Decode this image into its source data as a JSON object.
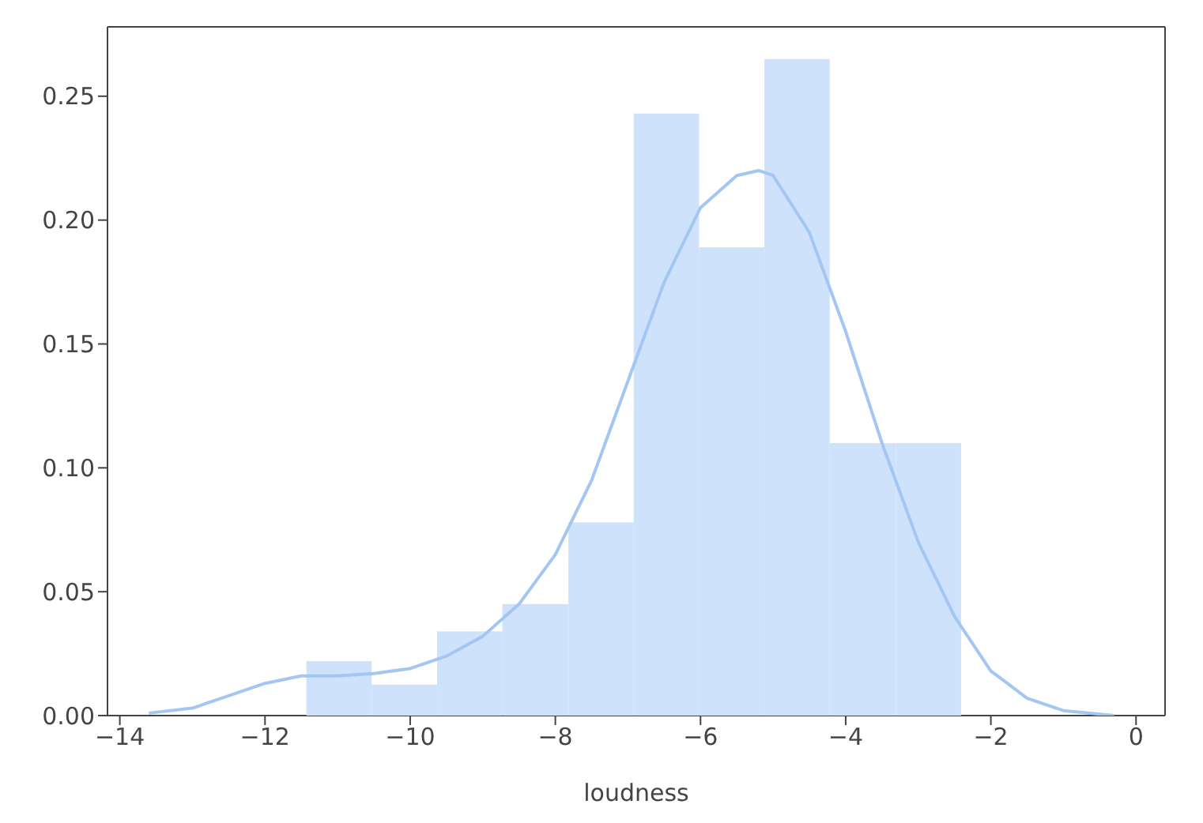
{
  "chart_data": {
    "type": "histogram",
    "xlabel": "loudness",
    "bins": [
      -11.43,
      -10.53,
      -9.63,
      -8.73,
      -7.82,
      -6.92,
      -6.02,
      -5.12,
      -4.22,
      -3.31,
      -2.41
    ],
    "values": [
      0.022,
      0.0125,
      0.034,
      0.045,
      0.078,
      0.243,
      0.189,
      0.265,
      0.11,
      0.11
    ],
    "color": "#cfe2fb",
    "series": [
      {
        "type": "line",
        "color": "#a3c6f2",
        "x": [
          -13.6,
          -13,
          -12.5,
          -12,
          -11.5,
          -11,
          -10.5,
          -10,
          -9.5,
          -9,
          -8.5,
          -8,
          -7.5,
          -7,
          -6.5,
          -6,
          -5.5,
          -5.2,
          -5,
          -4.5,
          -4,
          -3.5,
          -3,
          -2.5,
          -2,
          -1.5,
          -1,
          -0.3
        ],
        "values": [
          0.001,
          0.003,
          0.008,
          0.013,
          0.016,
          0.016,
          0.017,
          0.019,
          0.024,
          0.032,
          0.045,
          0.065,
          0.095,
          0.135,
          0.175,
          0.205,
          0.218,
          0.22,
          0.218,
          0.195,
          0.155,
          0.11,
          0.07,
          0.04,
          0.018,
          0.007,
          0.002,
          0
        ]
      }
    ],
    "xlim": [
      -14.17,
      0.4
    ],
    "ylim": [
      0,
      0.278
    ],
    "xticks": [
      {
        "value": -14,
        "label": "−14"
      },
      {
        "value": -12,
        "label": "−12"
      },
      {
        "value": -10,
        "label": "−10"
      },
      {
        "value": -8,
        "label": "−8"
      },
      {
        "value": -6,
        "label": "−6"
      },
      {
        "value": -4,
        "label": "−4"
      },
      {
        "value": -2,
        "label": "−2"
      },
      {
        "value": 0,
        "label": "0"
      }
    ],
    "yticks": [
      {
        "value": 0,
        "label": "0.00"
      },
      {
        "value": 0.05,
        "label": "0.05"
      },
      {
        "value": 0.1,
        "label": "0.10"
      },
      {
        "value": 0.15,
        "label": "0.15"
      },
      {
        "value": 0.2,
        "label": "0.20"
      },
      {
        "value": 0.25,
        "label": "0.25"
      }
    ],
    "grid": false,
    "legend": false,
    "marker": "none",
    "line_style": "solid"
  }
}
